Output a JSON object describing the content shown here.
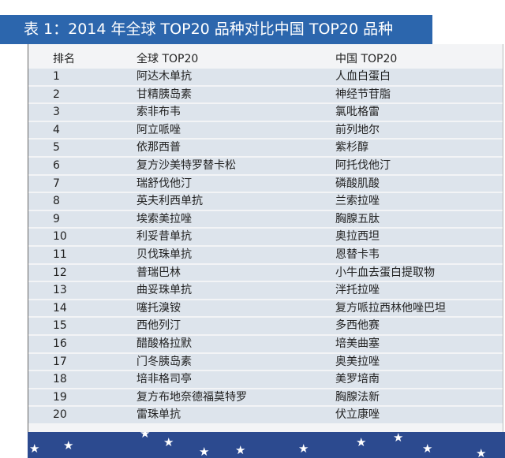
{
  "title": "表 1：2014 年全球 TOP20 品种对比中国 TOP20 品种",
  "table": {
    "headers": [
      "排名",
      "全球 TOP20",
      "中国 TOP20"
    ],
    "rows": [
      [
        "1",
        "阿达木单抗",
        "人血白蛋白"
      ],
      [
        "2",
        "甘精胰岛素",
        "神经节苷脂"
      ],
      [
        "3",
        "索非布韦",
        "氯吡格雷"
      ],
      [
        "4",
        "阿立哌唑",
        "前列地尔"
      ],
      [
        "5",
        "依那西普",
        "紫杉醇"
      ],
      [
        "6",
        "复方沙美特罗替卡松",
        "阿托伐他汀"
      ],
      [
        "7",
        "瑞舒伐他汀",
        "磷酸肌酸"
      ],
      [
        "8",
        "英夫利西单抗",
        "兰索拉唑"
      ],
      [
        "9",
        "埃索美拉唑",
        "胸腺五肽"
      ],
      [
        "10",
        "利妥昔单抗",
        "奥拉西坦"
      ],
      [
        "11",
        "贝伐珠单抗",
        "恩替卡韦"
      ],
      [
        "12",
        "普瑞巴林",
        "小牛血去蛋白提取物"
      ],
      [
        "13",
        "曲妥珠单抗",
        "泮托拉唑"
      ],
      [
        "14",
        "噻托溴铵",
        "复方哌拉西林他唑巴坦"
      ],
      [
        "15",
        "西他列汀",
        "多西他赛"
      ],
      [
        "16",
        "醋酸格拉默",
        "培美曲塞"
      ],
      [
        "17",
        "门冬胰岛素",
        "奥美拉唑"
      ],
      [
        "18",
        "培非格司亭",
        "美罗培南"
      ],
      [
        "19",
        "复方布地奈德福莫特罗",
        "胸腺法新"
      ],
      [
        "20",
        "雷珠单抗",
        "伏立康唑"
      ]
    ]
  },
  "colors": {
    "title_bar": "#2c66ad",
    "row_band": "#dde4ec",
    "star_band": "#2c4a8f"
  },
  "decoration_icon": "star-icon"
}
